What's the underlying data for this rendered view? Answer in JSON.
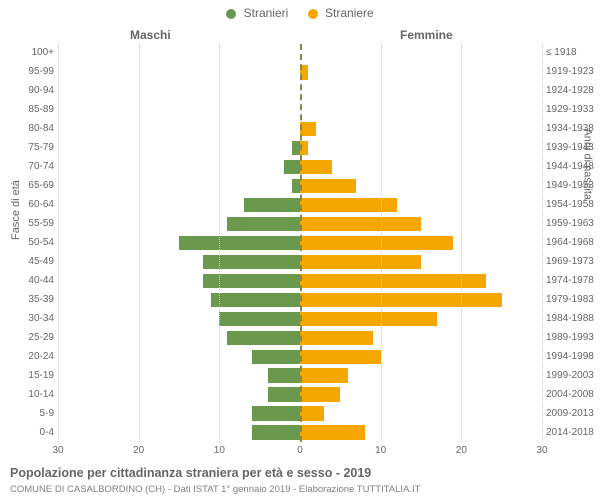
{
  "legend": {
    "male": {
      "label": "Stranieri",
      "color": "#6a994e"
    },
    "female": {
      "label": "Straniere",
      "color": "#f4a700"
    }
  },
  "subtitles": {
    "left": "Maschi",
    "right": "Femmine"
  },
  "yaxis": {
    "left_label": "Fasce di età",
    "right_label": "Anni di nascita"
  },
  "chart": {
    "type": "population-pyramid",
    "xlim": 30,
    "xticks": [
      30,
      20,
      10,
      0,
      10,
      20,
      30
    ],
    "grid_color": "#cccccc",
    "center_line_color": "#888844",
    "background_color": "#ffffff",
    "bar_width": 0.76,
    "rows": [
      {
        "age": "100+",
        "birth": "≤ 1918",
        "m": 0,
        "f": 0
      },
      {
        "age": "95-99",
        "birth": "1919-1923",
        "m": 0,
        "f": 1
      },
      {
        "age": "90-94",
        "birth": "1924-1928",
        "m": 0,
        "f": 0
      },
      {
        "age": "85-89",
        "birth": "1929-1933",
        "m": 0,
        "f": 0
      },
      {
        "age": "80-84",
        "birth": "1934-1938",
        "m": 0,
        "f": 2
      },
      {
        "age": "75-79",
        "birth": "1939-1943",
        "m": 1,
        "f": 1
      },
      {
        "age": "70-74",
        "birth": "1944-1948",
        "m": 2,
        "f": 4
      },
      {
        "age": "65-69",
        "birth": "1949-1953",
        "m": 1,
        "f": 7
      },
      {
        "age": "60-64",
        "birth": "1954-1958",
        "m": 7,
        "f": 12
      },
      {
        "age": "55-59",
        "birth": "1959-1963",
        "m": 9,
        "f": 15
      },
      {
        "age": "50-54",
        "birth": "1964-1968",
        "m": 15,
        "f": 19
      },
      {
        "age": "45-49",
        "birth": "1969-1973",
        "m": 12,
        "f": 15
      },
      {
        "age": "40-44",
        "birth": "1974-1978",
        "m": 12,
        "f": 23
      },
      {
        "age": "35-39",
        "birth": "1979-1983",
        "m": 11,
        "f": 25
      },
      {
        "age": "30-34",
        "birth": "1984-1988",
        "m": 10,
        "f": 17
      },
      {
        "age": "25-29",
        "birth": "1989-1993",
        "m": 9,
        "f": 9
      },
      {
        "age": "20-24",
        "birth": "1994-1998",
        "m": 6,
        "f": 10
      },
      {
        "age": "15-19",
        "birth": "1999-2003",
        "m": 4,
        "f": 6
      },
      {
        "age": "10-14",
        "birth": "2004-2008",
        "m": 4,
        "f": 5
      },
      {
        "age": "5-9",
        "birth": "2009-2013",
        "m": 6,
        "f": 3
      },
      {
        "age": "0-4",
        "birth": "2014-2018",
        "m": 6,
        "f": 8
      }
    ]
  },
  "footer": {
    "title": "Popolazione per cittadinanza straniera per età e sesso - 2019",
    "subtitle": "COMUNE DI CASALBORDINO (CH) - Dati ISTAT 1° gennaio 2019 - Elaborazione TUTTITALIA.IT"
  },
  "title_fontsize": 12.5,
  "subtitle_fontsize": 9.5,
  "tick_fontsize": 10,
  "text_color": "#666666"
}
